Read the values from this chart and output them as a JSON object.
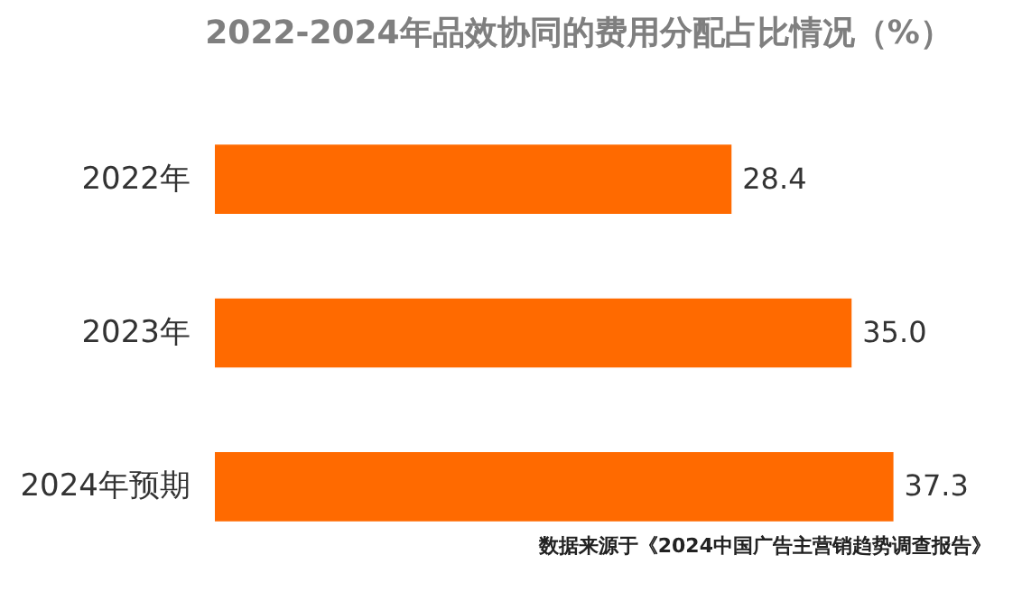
{
  "chart_data": {
    "type": "bar",
    "orientation": "horizontal",
    "title": "2022-2024年品效协同的费用分配占比情况（%）",
    "categories": [
      "2022年",
      "2023年",
      "2024年预期"
    ],
    "values": [
      28.4,
      35.0,
      37.3
    ],
    "color": "#ff6a00",
    "annotations": [
      "数据来源于《2024中国广告主营销趋势调查报告》"
    ],
    "value_labels": [
      "28.4",
      "35.0",
      "37.3"
    ]
  }
}
